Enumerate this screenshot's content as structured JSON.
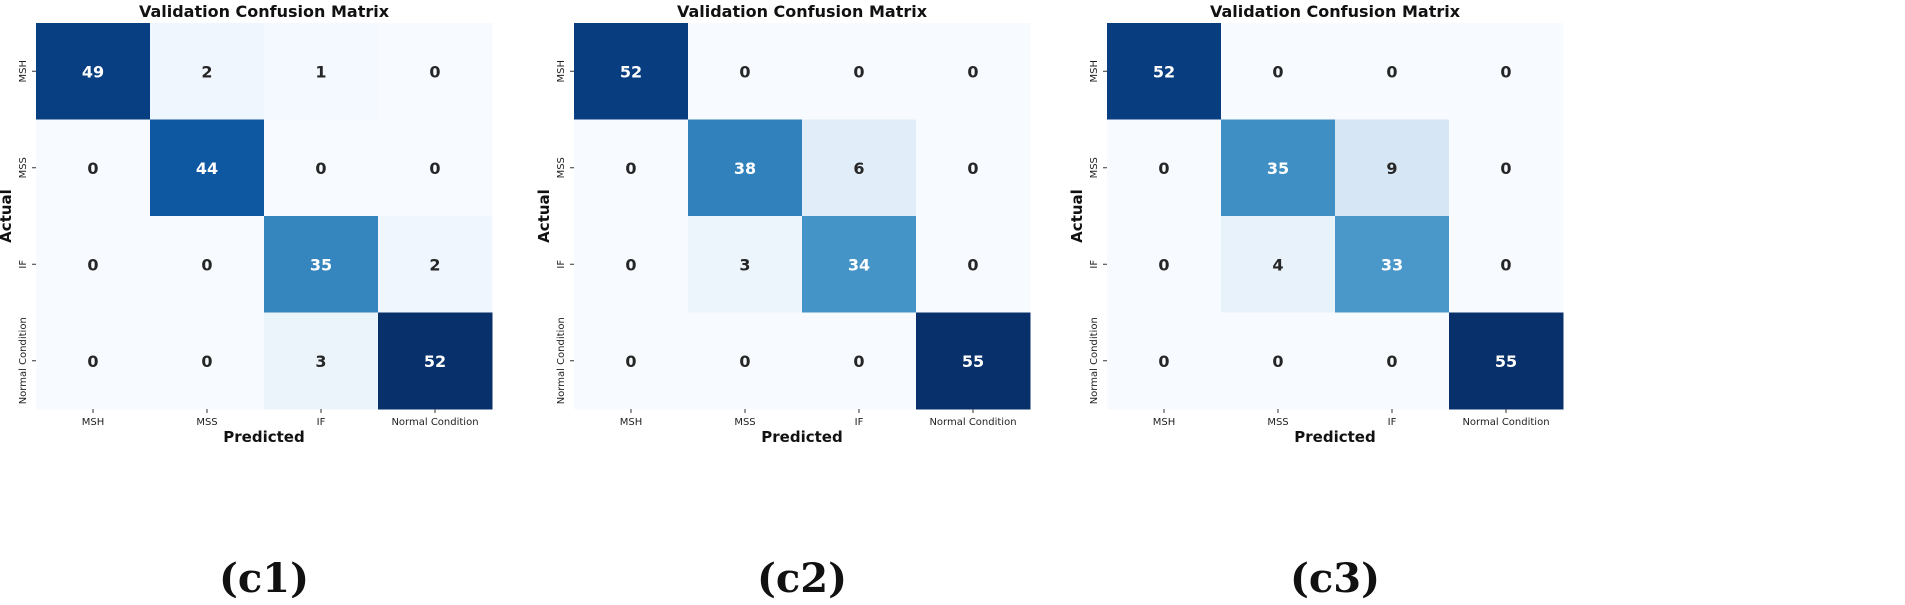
{
  "chart_data": [
    {
      "type": "heatmap",
      "title": "Validation Confusion Matrix",
      "xlabel": "Predicted",
      "ylabel": "Actual",
      "x_categories": [
        "MSH",
        "MSS",
        "IF",
        "Normal Condition"
      ],
      "y_categories": [
        "MSH",
        "MSS",
        "IF",
        "Normal Condition"
      ],
      "values": [
        [
          49,
          2,
          1,
          0
        ],
        [
          0,
          44,
          0,
          0
        ],
        [
          0,
          0,
          35,
          2
        ],
        [
          0,
          0,
          3,
          52
        ]
      ],
      "colormap": "Blues",
      "caption": "(c1)"
    },
    {
      "type": "heatmap",
      "title": "Validation Confusion Matrix",
      "xlabel": "Predicted",
      "ylabel": "Actual",
      "x_categories": [
        "MSH",
        "MSS",
        "IF",
        "Normal Condition"
      ],
      "y_categories": [
        "MSH",
        "MSS",
        "IF",
        "Normal Condition"
      ],
      "values": [
        [
          52,
          0,
          0,
          0
        ],
        [
          0,
          38,
          6,
          0
        ],
        [
          0,
          3,
          34,
          0
        ],
        [
          0,
          0,
          0,
          55
        ]
      ],
      "colormap": "Blues",
      "caption": "(c2)"
    },
    {
      "type": "heatmap",
      "title": "Validation Confusion Matrix",
      "xlabel": "Predicted",
      "ylabel": "Actual",
      "x_categories": [
        "MSH",
        "MSS",
        "IF",
        "Normal Condition"
      ],
      "y_categories": [
        "MSH",
        "MSS",
        "IF",
        "Normal Condition"
      ],
      "values": [
        [
          52,
          0,
          0,
          0
        ],
        [
          0,
          35,
          9,
          0
        ],
        [
          0,
          4,
          33,
          0
        ],
        [
          0,
          0,
          0,
          55
        ]
      ],
      "colormap": "Blues",
      "caption": "(c3)"
    }
  ]
}
